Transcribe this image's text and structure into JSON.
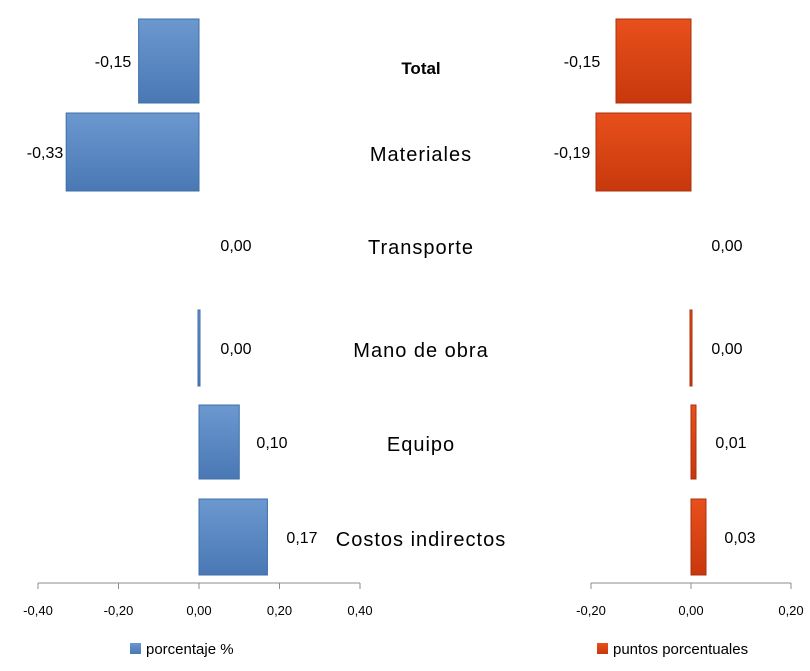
{
  "chart_data": {
    "categories": [
      "Total",
      "Materiales",
      "Transporte",
      "Mano de obra",
      "Equipo",
      "Costos indirectos"
    ],
    "bold_category": "Total",
    "panels": [
      {
        "type": "bar",
        "orientation": "horizontal",
        "series_name": "porcentaje %",
        "color": "#4F81BD",
        "values": [
          -0.15,
          -0.33,
          0.0,
          0.0,
          0.1,
          0.17
        ],
        "value_labels": [
          "-0,15",
          "-0,33",
          "0,00",
          "0,00",
          "0,10",
          "0,17"
        ],
        "xlim": [
          -0.4,
          0.4
        ],
        "ticks": [
          -0.4,
          -0.2,
          0.0,
          0.2,
          0.4
        ],
        "tick_labels": [
          "-0,40",
          "-0,20",
          "0,00",
          "0,20",
          "0,40"
        ]
      },
      {
        "type": "bar",
        "orientation": "horizontal",
        "series_name": "puntos porcentuales",
        "color": "#D84315",
        "values": [
          -0.15,
          -0.19,
          0.0,
          0.0,
          0.01,
          0.03
        ],
        "value_labels": [
          "-0,15",
          "-0,19",
          "0,00",
          "0,00",
          "0,01",
          "0,03"
        ],
        "xlim": [
          -0.2,
          0.2
        ],
        "ticks": [
          -0.2,
          0.0,
          0.2
        ],
        "tick_labels": [
          "-0,20",
          "0,00",
          "0,20"
        ]
      }
    ],
    "legend_placement": "bottom"
  }
}
